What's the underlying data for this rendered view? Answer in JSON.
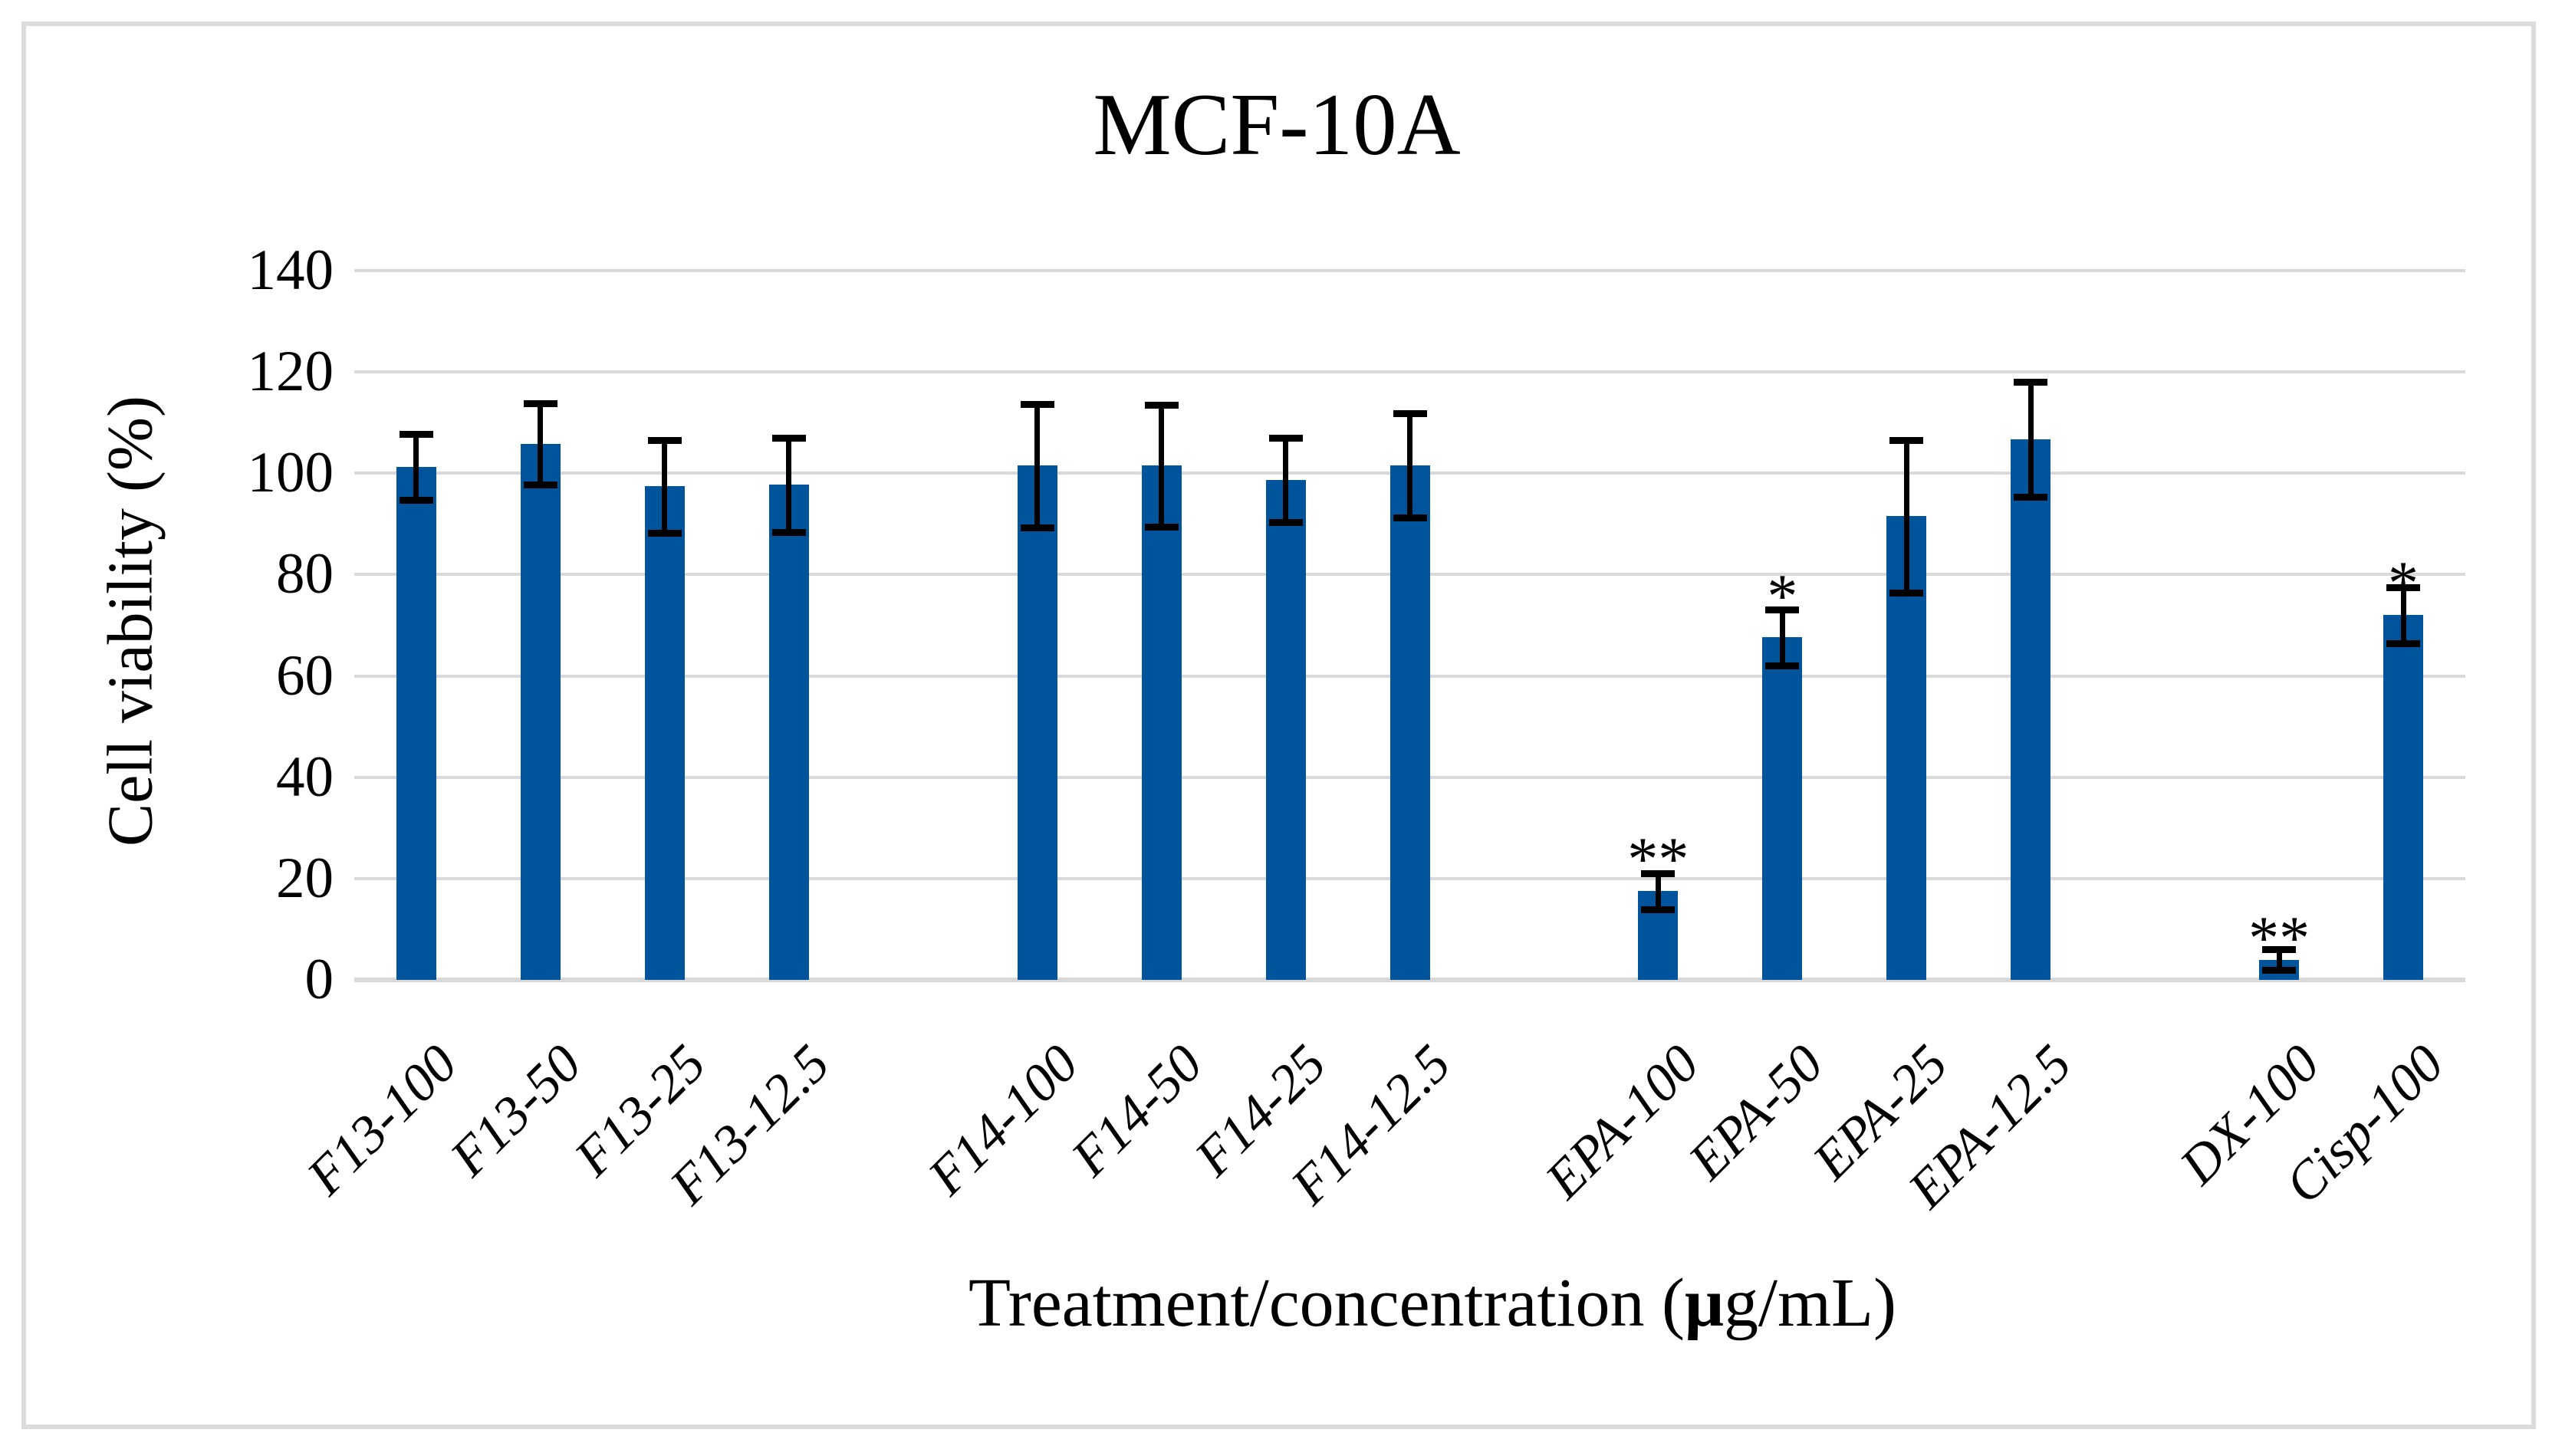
{
  "chart_data": {
    "type": "bar",
    "title": "MCF-10A",
    "ylabel": "Cell viability (%)",
    "xlabel": "Treatment/concentration (μg/mL)",
    "xlabel_parts": {
      "pre": "Treatment/concentration (",
      "mu": "μ",
      "post": "g/mL)"
    },
    "ylim": [
      0,
      140
    ],
    "yticks": [
      0,
      20,
      40,
      60,
      80,
      100,
      120,
      140
    ],
    "grid": true,
    "legend": false,
    "bar_color": "#00549b",
    "gridline_color": "#d9d9d9",
    "error_bar_color": "#000000",
    "frame_color": "#dcdcdc",
    "total_slots": 17,
    "categories": [
      "F13-100",
      "F13-50",
      "F13-25",
      "F13-12.5",
      "F14-100",
      "F14-50",
      "F14-25",
      "F14-12.5",
      "EPA-100",
      "EPA-50",
      "EPA-25",
      "EPA-12.5",
      "DX-100",
      "Cisp-100"
    ],
    "bars": [
      {
        "label": "F13-100",
        "slot": 1,
        "value": 101.3,
        "error": 6.5,
        "annotation": null,
        "annotation_y": null
      },
      {
        "label": "F13-50",
        "slot": 2,
        "value": 105.8,
        "error": 8.0,
        "annotation": null,
        "annotation_y": null
      },
      {
        "label": "F13-25",
        "slot": 3,
        "value": 97.4,
        "error": 9.2,
        "annotation": null,
        "annotation_y": null
      },
      {
        "label": "F13-12.5",
        "slot": 4,
        "value": 97.7,
        "error": 9.3,
        "annotation": null,
        "annotation_y": null
      },
      {
        "label": "F14-100",
        "slot": 6,
        "value": 101.5,
        "error": 12.2,
        "annotation": null,
        "annotation_y": null
      },
      {
        "label": "F14-50",
        "slot": 7,
        "value": 101.5,
        "error": 12.0,
        "annotation": null,
        "annotation_y": null
      },
      {
        "label": "F14-25",
        "slot": 8,
        "value": 98.7,
        "error": 8.3,
        "annotation": null,
        "annotation_y": null
      },
      {
        "label": "F14-12.5",
        "slot": 9,
        "value": 101.6,
        "error": 10.3,
        "annotation": null,
        "annotation_y": null
      },
      {
        "label": "EPA-100",
        "slot": 11,
        "value": 17.5,
        "error": 3.5,
        "annotation": "**",
        "annotation_y": 29
      },
      {
        "label": "EPA-50",
        "slot": 12,
        "value": 67.6,
        "error": 5.5,
        "annotation": "*",
        "annotation_y": 81
      },
      {
        "label": "EPA-25",
        "slot": 13,
        "value": 91.5,
        "error": 15.0,
        "annotation": null,
        "annotation_y": null
      },
      {
        "label": "EPA-12.5",
        "slot": 14,
        "value": 106.7,
        "error": 11.3,
        "annotation": null,
        "annotation_y": null
      },
      {
        "label": "DX-100",
        "slot": 16,
        "value": 4.0,
        "error": 2.0,
        "annotation": "**",
        "annotation_y": 13.5
      },
      {
        "label": "Cisp-100",
        "slot": 17,
        "value": 72.0,
        "error": 5.5,
        "annotation": "*",
        "annotation_y": 83.5
      }
    ]
  }
}
